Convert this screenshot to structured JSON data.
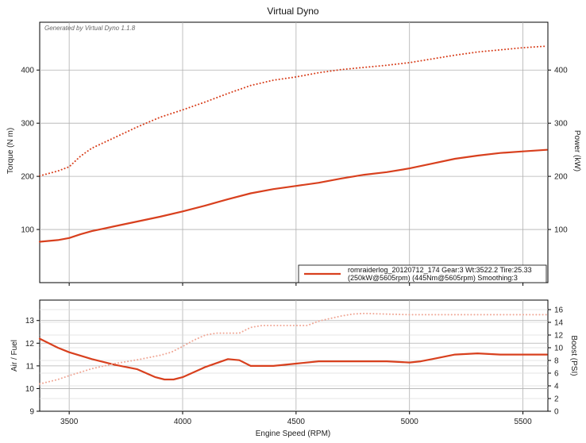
{
  "window": {
    "title": "Virtual Dyno"
  },
  "watermark": "Generated by Virtual Dyno 1.1.8",
  "colors": {
    "main": "#d8401e",
    "light": "#f0a897",
    "grid": "#b0b0b0",
    "frame": "#000000"
  },
  "chart_data": [
    {
      "type": "line",
      "title": "Virtual Dyno",
      "xlabel": "",
      "ylabel": "Torque (N m)",
      "y2label": "Power (kW)",
      "xlim": [
        3370,
        5610
      ],
      "ylim": [
        0,
        490
      ],
      "y2lim": [
        0,
        490
      ],
      "xticks": [
        3500,
        4000,
        4500,
        5000,
        5500
      ],
      "yticks": [
        100,
        200,
        300,
        400
      ],
      "y2ticks": [
        100,
        200,
        300,
        400
      ],
      "grid": true,
      "legend": {
        "position": "bottom-right",
        "lines": [
          "romraiderlog_20120712_174 Gear:3 Wt:3522.2 Tire:25.33",
          "(250kW@5605rpm) (445Nm@5605rpm) Smoothing:3"
        ]
      },
      "series": [
        {
          "name": "",
          "kind": "torque",
          "style": "dotted",
          "x": [
            3370,
            3450,
            3500,
            3550,
            3600,
            3700,
            3800,
            3900,
            4000,
            4100,
            4200,
            4300,
            4400,
            4500,
            4600,
            4700,
            4800,
            4900,
            5000,
            5100,
            5200,
            5300,
            5400,
            5500,
            5605
          ],
          "y": [
            201,
            210,
            218,
            238,
            253,
            273,
            293,
            311,
            325,
            340,
            356,
            371,
            381,
            387,
            395,
            401,
            405,
            409,
            414,
            421,
            428,
            434,
            438,
            442,
            445
          ]
        },
        {
          "name": "",
          "kind": "power",
          "style": "solid",
          "x": [
            3370,
            3450,
            3500,
            3550,
            3600,
            3700,
            3800,
            3900,
            4000,
            4100,
            4200,
            4300,
            4400,
            4500,
            4600,
            4700,
            4800,
            4900,
            5000,
            5100,
            5200,
            5300,
            5400,
            5500,
            5605
          ],
          "y": [
            77,
            80,
            84,
            91,
            97,
            106,
            115,
            124,
            134,
            145,
            157,
            168,
            176,
            182,
            188,
            196,
            203,
            208,
            215,
            224,
            233,
            239,
            244,
            247,
            250
          ]
        }
      ]
    },
    {
      "type": "line",
      "title": "",
      "xlabel": "Engine Speed (RPM)",
      "ylabel": "Air / Fuel",
      "y2label": "Boost (PSI)",
      "xlim": [
        3370,
        5610
      ],
      "ylim": [
        9,
        13.9
      ],
      "y2lim": [
        0,
        17.5
      ],
      "xticks": [
        3500,
        4000,
        4500,
        5000,
        5500
      ],
      "yticks": [
        9,
        10,
        11,
        12,
        13
      ],
      "y2ticks": [
        0,
        2,
        4,
        6,
        8,
        10,
        12,
        14,
        16
      ],
      "grid": true,
      "series": [
        {
          "name": "",
          "kind": "afr",
          "style": "solid",
          "x": [
            3370,
            3450,
            3500,
            3600,
            3700,
            3800,
            3880,
            3920,
            3960,
            4000,
            4100,
            4200,
            4250,
            4300,
            4400,
            4500,
            4600,
            4700,
            4800,
            4900,
            5000,
            5050,
            5100,
            5200,
            5300,
            5400,
            5500,
            5605
          ],
          "y": [
            12.2,
            11.8,
            11.6,
            11.3,
            11.05,
            10.85,
            10.5,
            10.4,
            10.4,
            10.5,
            10.95,
            11.3,
            11.25,
            11.0,
            11.0,
            11.1,
            11.2,
            11.2,
            11.2,
            11.2,
            11.15,
            11.2,
            11.3,
            11.5,
            11.55,
            11.5,
            11.5,
            11.5
          ]
        },
        {
          "name": "",
          "kind": "boost",
          "style": "dotted",
          "x": [
            3370,
            3450,
            3500,
            3600,
            3700,
            3800,
            3900,
            3950,
            4000,
            4050,
            4100,
            4150,
            4200,
            4250,
            4300,
            4350,
            4400,
            4500,
            4550,
            4600,
            4700,
            4750,
            4800,
            5000,
            5200,
            5400,
            5605
          ],
          "y": [
            4.3,
            5.0,
            5.6,
            6.7,
            7.5,
            8.1,
            8.8,
            9.3,
            10.2,
            11.2,
            12.0,
            12.3,
            12.3,
            12.3,
            13.2,
            13.5,
            13.5,
            13.5,
            13.5,
            14.2,
            15.0,
            15.3,
            15.4,
            15.2,
            15.2,
            15.2,
            15.2
          ]
        }
      ]
    }
  ]
}
